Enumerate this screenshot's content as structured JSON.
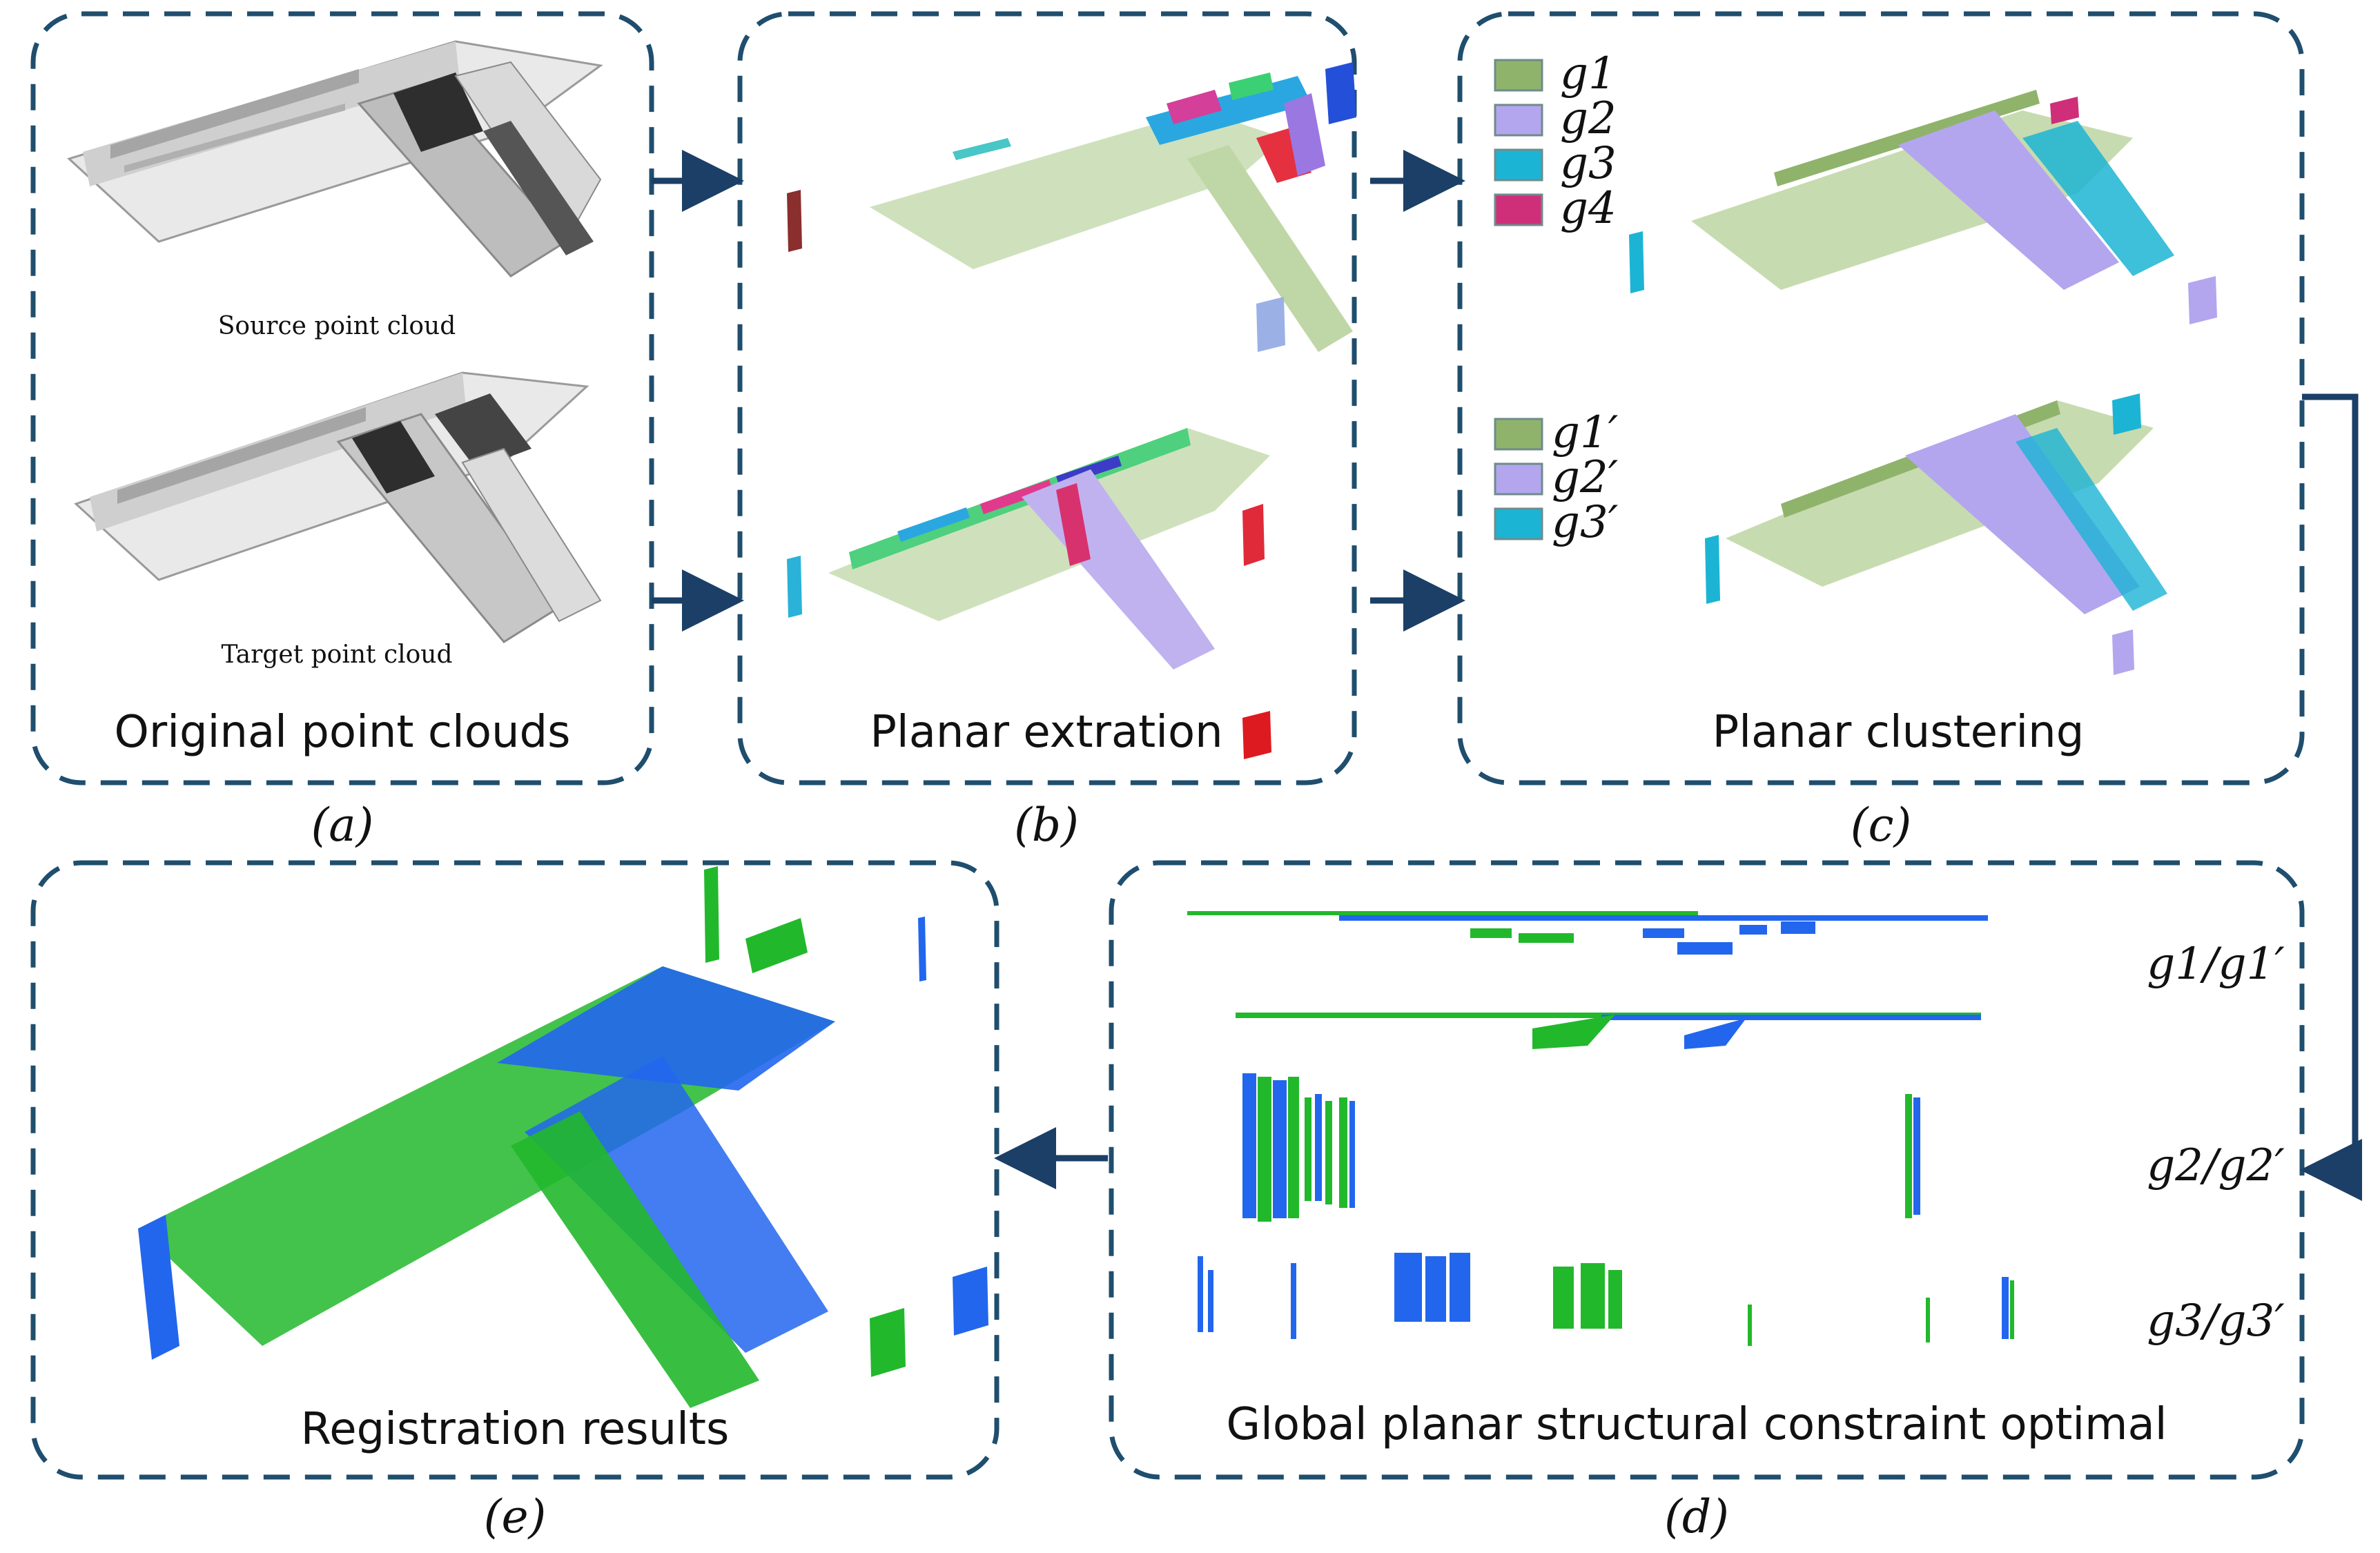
{
  "colors": {
    "frame": "#1f4e6e",
    "arrow": "#1b3f66",
    "g1": "#8fb36b",
    "g2": "#b3a6ee",
    "g3": "#1cb4d4",
    "g4": "#cf2f78",
    "source_cloud": "#2266ee",
    "target_cloud": "#22b82c"
  },
  "panels": {
    "a": {
      "title": "Original point clouds",
      "letter": "(a)",
      "source_label": "Source point cloud",
      "target_label": "Target point cloud"
    },
    "b": {
      "title": "Planar extration",
      "letter": "(b)"
    },
    "c": {
      "title": "Planar clustering",
      "letter": "(c)",
      "legend_source": [
        {
          "label": "g1",
          "color": "g1"
        },
        {
          "label": "g2",
          "color": "g2"
        },
        {
          "label": "g3",
          "color": "g3"
        },
        {
          "label": "g4",
          "color": "g4"
        }
      ],
      "legend_target": [
        {
          "label": "g1′",
          "color": "g1"
        },
        {
          "label": "g2′",
          "color": "g2"
        },
        {
          "label": "g3′",
          "color": "g3"
        }
      ]
    },
    "d": {
      "title": "Global planar structural constraint optimal",
      "letter": "(d)",
      "pairs": [
        "g1/g1′",
        "g2/g2′",
        "g3/g3′"
      ]
    },
    "e": {
      "title": "Registration results",
      "letter": "(e)"
    }
  }
}
